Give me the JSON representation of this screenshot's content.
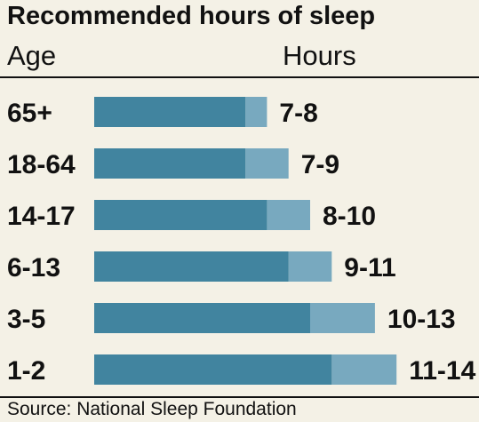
{
  "chart_data": {
    "type": "bar",
    "title": "Recommended hours of sleep",
    "category_header": "Age",
    "value_header": "Hours",
    "categories": [
      "65+",
      "18-64",
      "14-17",
      "6-13",
      "3-5",
      "1-2"
    ],
    "series": [
      {
        "min": [
          7,
          7,
          8,
          9,
          10,
          11
        ],
        "max": [
          8,
          9,
          10,
          11,
          13,
          14
        ]
      }
    ],
    "range_labels": [
      "7-8",
      "7-9",
      "8-10",
      "9-11",
      "10-13",
      "11-14"
    ],
    "colors": {
      "minimum": "#41849f",
      "extension": "#78a9bf"
    }
  },
  "source": "Source: National Sleep Foundation"
}
